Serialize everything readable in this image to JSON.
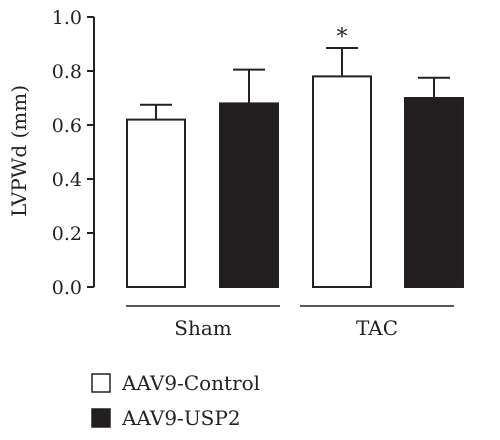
{
  "chart_data": {
    "type": "bar",
    "ylabel": "LVPWd (mm)",
    "ylim": [
      0,
      1.0
    ],
    "yticks": [
      "0.0",
      "0.2",
      "0.4",
      "0.6",
      "0.8",
      "1.0"
    ],
    "grid": false,
    "groups": [
      "Sham",
      "TAC"
    ],
    "series": [
      {
        "name": "AAV9-Control",
        "color": "#ffffff",
        "values": [
          0.62,
          0.78
        ],
        "errors": [
          0.055,
          0.105
        ]
      },
      {
        "name": "AAV9-USP2",
        "color": "#231f20",
        "values": [
          0.68,
          0.7
        ],
        "errors": [
          0.125,
          0.075
        ]
      }
    ],
    "annotations": [
      {
        "text": "*",
        "group": "TAC",
        "series": "AAV9-Control"
      }
    ],
    "legend": "bottom-left"
  }
}
